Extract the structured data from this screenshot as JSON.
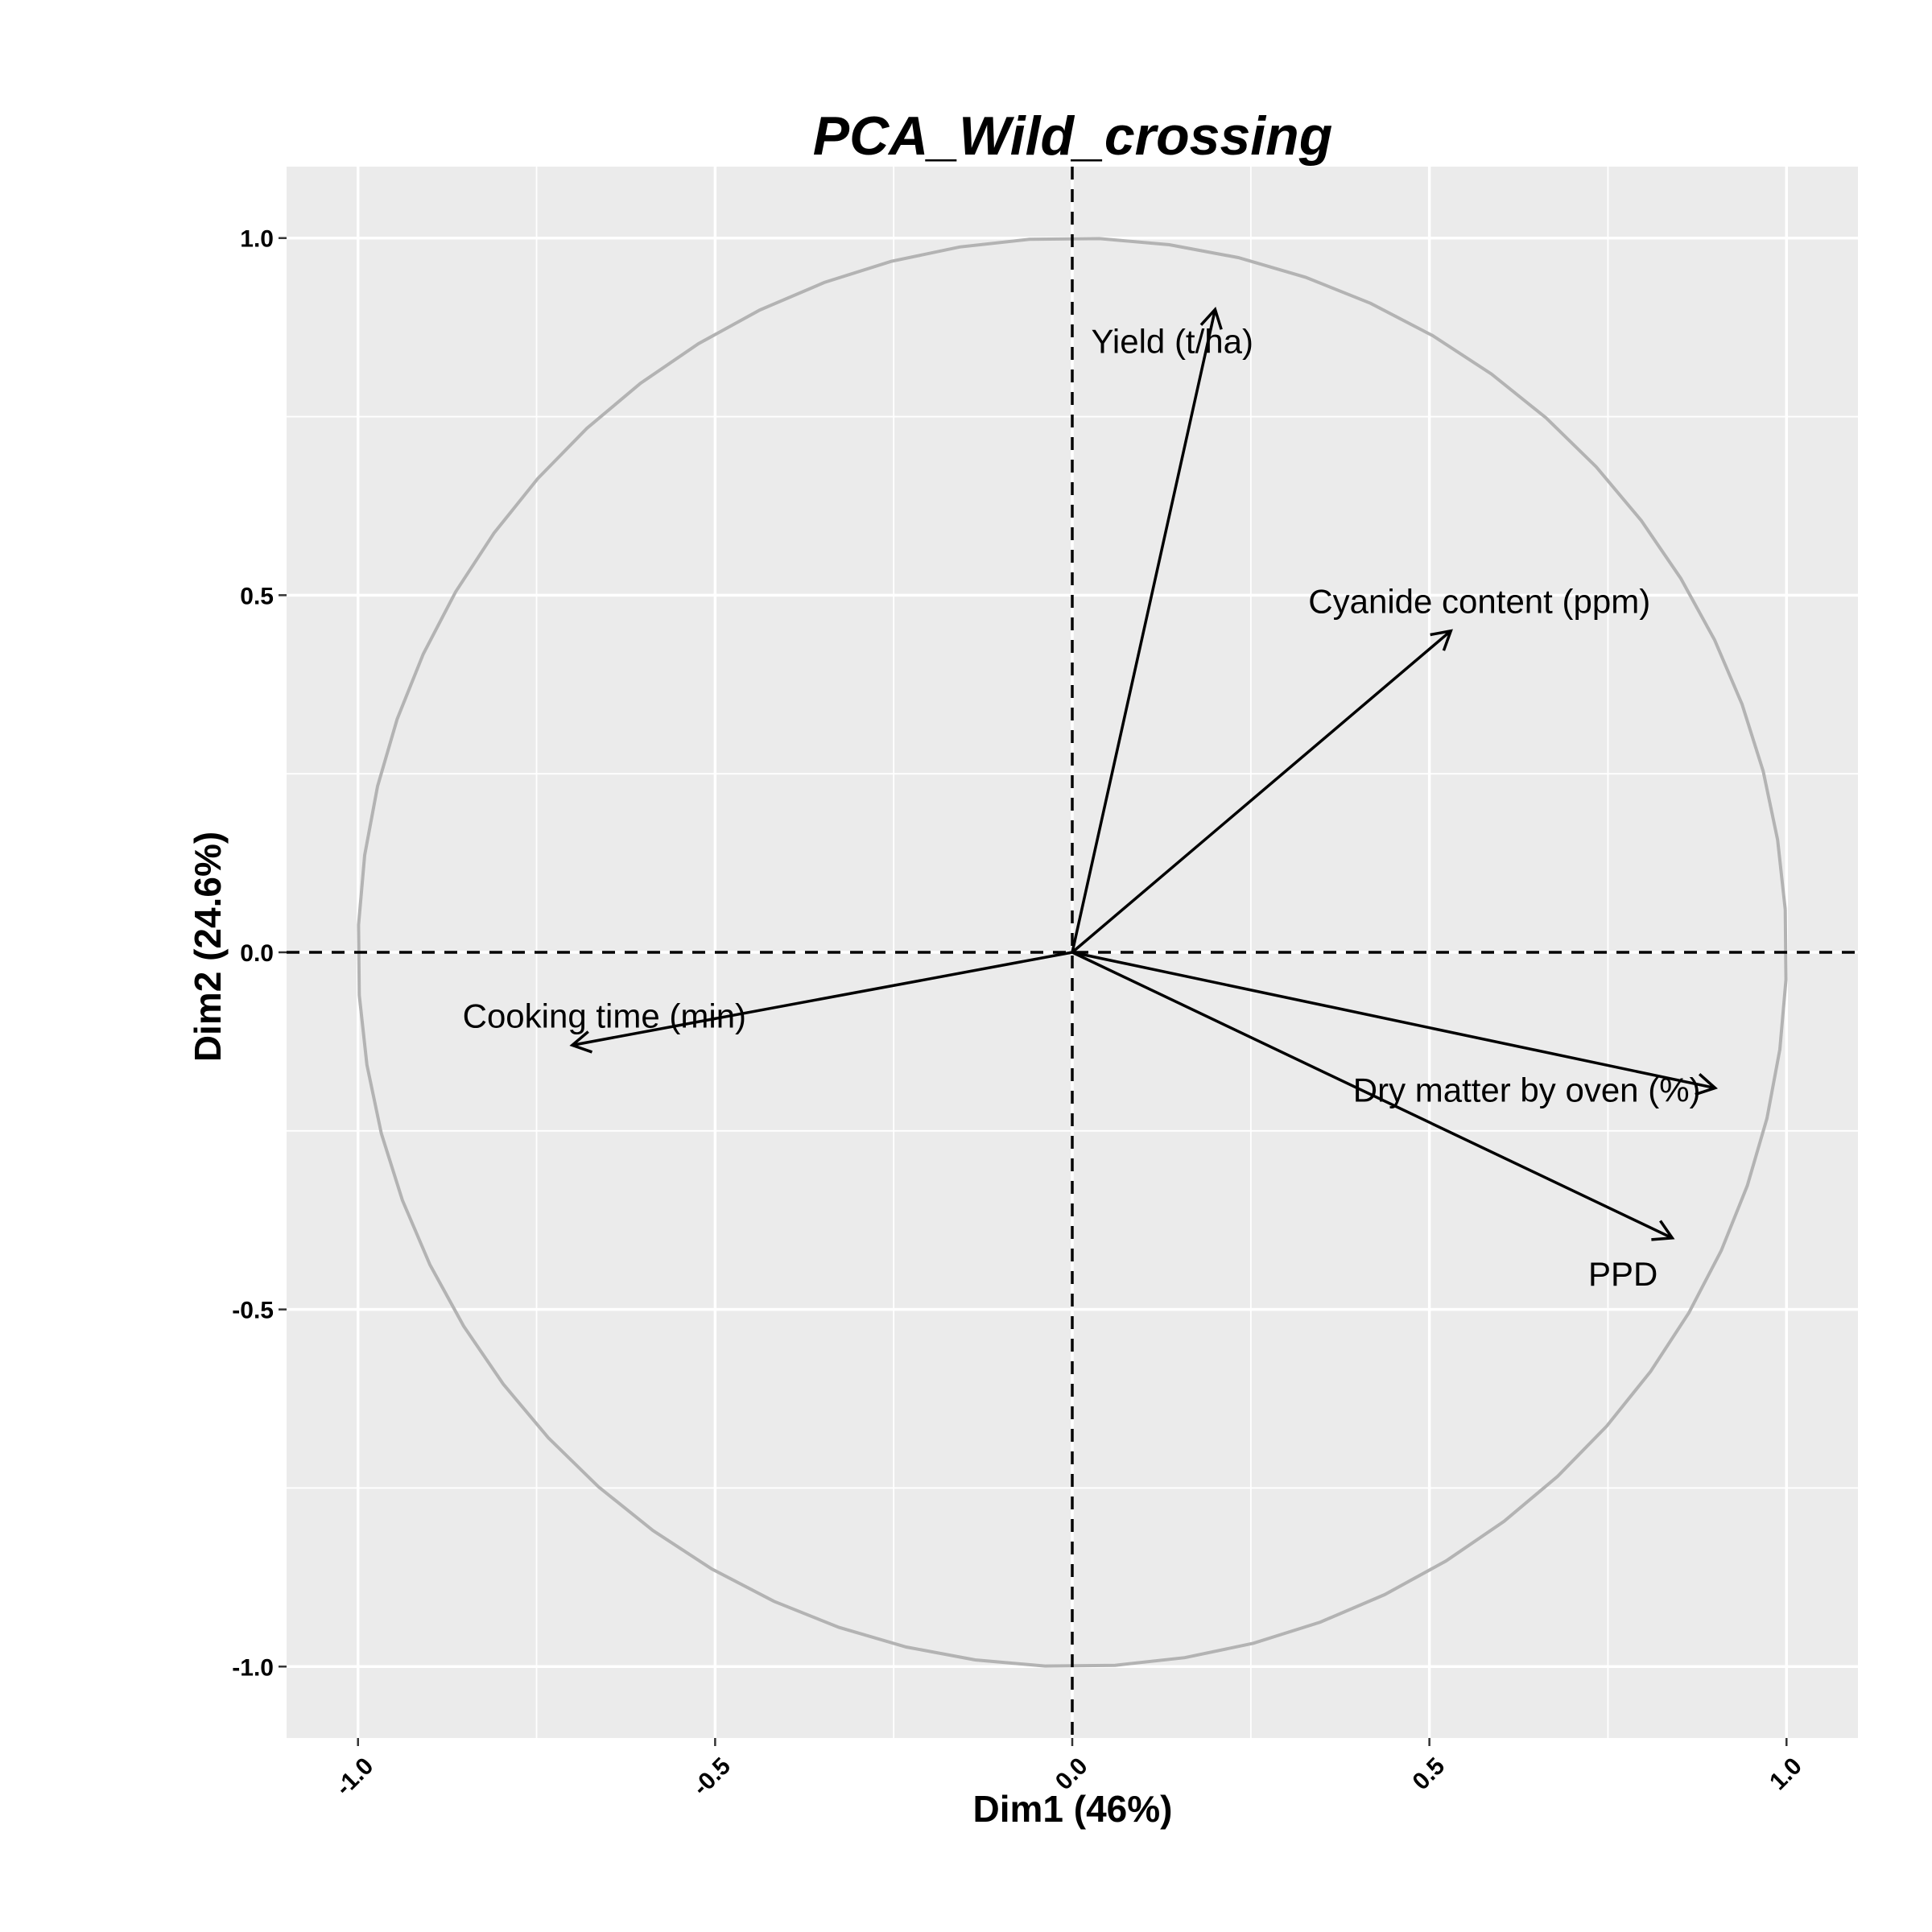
{
  "chart_data": {
    "type": "pca-variable-correlation-circle",
    "title": "PCA_Wild_crossing",
    "xlabel": "Dim1 (46%)",
    "ylabel": "Dim2 (24.6%)",
    "xlim": [
      -1.1,
      1.1
    ],
    "ylim": [
      -1.1,
      1.1
    ],
    "x_ticks": [
      "-1.0",
      "-0.5",
      "0.0",
      "0.5",
      "1.0"
    ],
    "y_ticks": [
      "1.0",
      "0.5",
      "0.0",
      "-0.5",
      "-1.0"
    ],
    "grid": true,
    "unit_circle": true,
    "reference_lines": "dashed at x=0 and y=0",
    "variables": [
      {
        "label": "Yield (t/ha)",
        "x": 0.2,
        "y": 0.9,
        "label_anchor": "middle"
      },
      {
        "label": "Cyanide content (ppm)",
        "x": 0.53,
        "y": 0.45,
        "label_anchor": "middle"
      },
      {
        "label": "Cooking time (min)",
        "x": -0.7,
        "y": -0.13,
        "label_anchor": "middle"
      },
      {
        "label": "Dry matter by oven (%)",
        "x": 0.9,
        "y": -0.19,
        "label_anchor": "end"
      },
      {
        "label": "PPD",
        "x": 0.84,
        "y": -0.4,
        "label_anchor": "end"
      }
    ],
    "colors": {
      "panel_background": "#EBEBEB",
      "grid": "#FFFFFF",
      "circle": "#B3B3B3",
      "arrows": "#000000"
    }
  }
}
